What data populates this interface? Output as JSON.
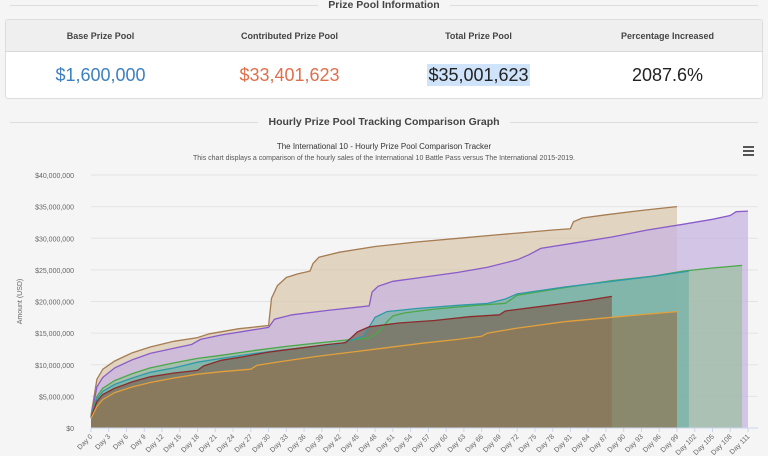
{
  "sections": {
    "prize_pool_heading": "Prize Pool Information",
    "graph_heading": "Hourly Prize Pool Tracking Comparison Graph"
  },
  "stats": {
    "headers": [
      "Base Prize Pool",
      "Contributed Prize Pool",
      "Total Prize Pool",
      "Percentage Increased"
    ],
    "base": "$1,600,000",
    "contributed": "$33,401,623",
    "total": "$35,001,623",
    "percentage": "2087.6%",
    "colors": {
      "base": "#3d7fc0",
      "contributed": "#e0704b"
    }
  },
  "menu": {
    "icon": "hamburger-menu-icon"
  },
  "chart_data": {
    "type": "area",
    "title": "The International 10 - Hourly Prize Pool Comparison Tracker",
    "subtitle": "This chart displays a comparison of the hourly sales of the International 10 Battle Pass versus The International 2015-2019.",
    "xlabel": "",
    "ylabel": "Amount (USD)",
    "ylim": [
      0,
      40000000
    ],
    "xlim": [
      0,
      112
    ],
    "grid": true,
    "legend": "none",
    "y_ticks": [
      "$0",
      "$5,000,000",
      "$10,000,000",
      "$15,000,000",
      "$20,000,000",
      "$25,000,000",
      "$30,000,000",
      "$35,000,000",
      "$40,000,000"
    ],
    "x_ticks": [
      "Day 0",
      "Day 3",
      "Day 6",
      "Day 9",
      "Day 12",
      "Day 15",
      "Day 18",
      "Day 21",
      "Day 24",
      "Day 27",
      "Day 30",
      "Day 33",
      "Day 36",
      "Day 39",
      "Day 42",
      "Day 45",
      "Day 48",
      "Day 51",
      "Day 54",
      "Day 57",
      "Day 60",
      "Day 63",
      "Day 66",
      "Day 69",
      "Day 72",
      "Day 75",
      "Day 78",
      "Day 81",
      "Day 84",
      "Day 87",
      "Day 90",
      "Day 93",
      "Day 96",
      "Day 99",
      "Day 102",
      "Day 105",
      "Day 108",
      "Day 111"
    ],
    "series": [
      {
        "name": "brown",
        "color": "#a67c52",
        "fill": "#d9c8ae",
        "x": [
          0,
          1,
          2,
          4,
          7,
          10,
          14,
          18,
          20,
          25,
          30,
          30.5,
          31.5,
          33,
          35,
          37,
          37.5,
          38.5,
          42,
          48,
          55,
          62,
          68,
          73,
          78,
          81,
          81.5,
          83,
          87,
          92,
          96,
          99
        ],
        "y": [
          2.0,
          7.7,
          9.3,
          10.6,
          11.9,
          12.8,
          13.7,
          14.3,
          14.9,
          15.7,
          16.2,
          20.5,
          22.5,
          23.8,
          24.4,
          24.8,
          26.0,
          27.0,
          27.8,
          28.7,
          29.4,
          30.0,
          30.5,
          30.9,
          31.3,
          31.5,
          32.6,
          33.2,
          33.7,
          34.3,
          34.7,
          35.0
        ]
      },
      {
        "name": "purple",
        "color": "#8a5cc9",
        "fill": "#c7b4e0",
        "x": [
          0,
          1,
          2,
          4,
          7,
          10,
          14,
          17,
          18.5,
          22,
          26,
          30,
          31,
          34,
          40,
          45,
          47,
          47.5,
          48.5,
          51,
          55,
          62,
          67,
          72,
          74,
          76,
          82,
          88,
          94,
          100,
          105,
          108,
          109,
          111
        ],
        "y": [
          1.6,
          6.5,
          8.0,
          9.5,
          10.8,
          11.8,
          12.6,
          13.2,
          14.0,
          14.7,
          15.3,
          15.9,
          17.2,
          17.9,
          18.6,
          19.1,
          19.3,
          21.5,
          22.4,
          23.2,
          23.7,
          24.6,
          25.4,
          26.6,
          27.4,
          28.4,
          29.3,
          30.2,
          31.3,
          32.2,
          33.0,
          33.6,
          34.2,
          34.3
        ]
      },
      {
        "name": "green",
        "color": "#4aa84a",
        "fill": "#9dbfa3",
        "x": [
          0,
          1,
          2,
          4,
          7,
          10,
          14,
          18,
          22,
          28,
          33,
          38,
          43,
          47,
          49,
          50,
          51,
          53,
          58,
          65,
          70,
          72,
          80,
          88,
          95,
          100,
          105,
          110
        ],
        "y": [
          1.8,
          5.0,
          6.3,
          7.5,
          8.6,
          9.5,
          10.3,
          11.0,
          11.5,
          12.3,
          12.9,
          13.4,
          13.9,
          14.2,
          15.5,
          16.8,
          17.7,
          18.2,
          18.8,
          19.4,
          19.7,
          21.0,
          22.2,
          23.3,
          24.0,
          24.8,
          25.3,
          25.7
        ]
      },
      {
        "name": "teal",
        "color": "#2f9aa8",
        "fill": "#76b3a8",
        "x": [
          0,
          1,
          2,
          4,
          7,
          10,
          14,
          18,
          22,
          27,
          32,
          37,
          42,
          44,
          46,
          47,
          48,
          50,
          55,
          62,
          67,
          70,
          72,
          80,
          88,
          95,
          101
        ],
        "y": [
          1.8,
          4.6,
          5.8,
          6.9,
          7.9,
          8.8,
          9.5,
          10.4,
          11.0,
          11.7,
          12.3,
          12.8,
          13.3,
          13.9,
          14.5,
          16.0,
          17.5,
          18.4,
          18.9,
          19.4,
          19.7,
          20.4,
          21.2,
          22.3,
          23.2,
          24.0,
          24.8
        ]
      },
      {
        "name": "dark-red",
        "color": "#8b2c2c",
        "fill": "#7a6a5a",
        "x": [
          0,
          1,
          2,
          4,
          7,
          10,
          14,
          18,
          19,
          22,
          26,
          30,
          35,
          40,
          43,
          44,
          45,
          47,
          52,
          58,
          64,
          69,
          70,
          75,
          80,
          84,
          88
        ],
        "y": [
          1.6,
          4.2,
          5.3,
          6.3,
          7.3,
          8.1,
          8.7,
          9.1,
          9.8,
          10.7,
          11.3,
          12.0,
          12.6,
          13.2,
          13.5,
          14.3,
          15.2,
          16.0,
          16.6,
          17.0,
          17.6,
          17.9,
          18.5,
          19.1,
          19.7,
          20.2,
          20.8
        ]
      },
      {
        "name": "orange",
        "color": "#e3a03a",
        "fill": "#8d7a58",
        "x": [
          0,
          1,
          2,
          4,
          7,
          10,
          14,
          18,
          22,
          27,
          28,
          32,
          38,
          44,
          50,
          56,
          62,
          66,
          67,
          72,
          80,
          88,
          94,
          99
        ],
        "y": [
          1.5,
          3.4,
          4.5,
          5.6,
          6.5,
          7.2,
          7.9,
          8.5,
          8.9,
          9.3,
          9.9,
          10.5,
          11.3,
          12.0,
          12.7,
          13.4,
          14.0,
          14.5,
          15.0,
          15.8,
          16.8,
          17.5,
          18.0,
          18.4
        ]
      }
    ],
    "y_units": "millions USD (series y values)"
  }
}
